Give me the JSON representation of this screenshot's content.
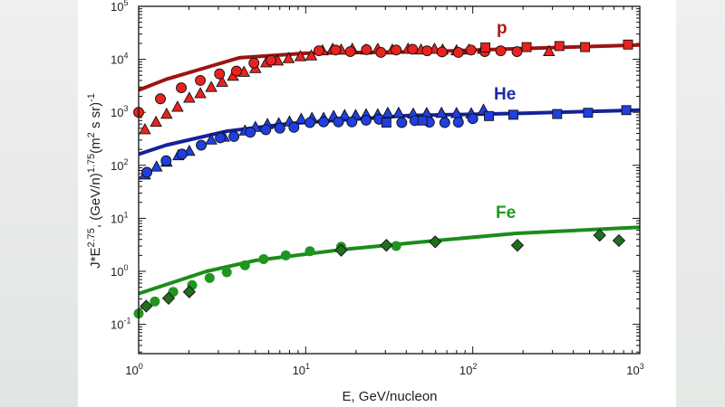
{
  "chart_data": {
    "type": "scatter",
    "title": "",
    "xlabel": "E, GeV/nucleon",
    "ylabel": {
      "base": "J*E",
      "exp1": "2.75",
      "mid": ", (GeV/n)",
      "exp2": "1.75",
      "unit": "(m",
      "exp3": "2",
      "unit2": " s sr)",
      "exp4": "-1"
    },
    "x_scale": "log",
    "y_scale": "log",
    "xlim": [
      1,
      1000
    ],
    "ylim": [
      0.028,
      100000
    ],
    "x_ticks": [
      {
        "base": "10",
        "exp": "0"
      },
      {
        "base": "10",
        "exp": "1"
      },
      {
        "base": "10",
        "exp": "2"
      },
      {
        "base": "10",
        "exp": "3"
      }
    ],
    "y_ticks": [
      {
        "base": "10",
        "exp": "-1"
      },
      {
        "base": "10",
        "exp": "0"
      },
      {
        "base": "10",
        "exp": "1"
      },
      {
        "base": "10",
        "exp": "2"
      },
      {
        "base": "10",
        "exp": "3"
      },
      {
        "base": "10",
        "exp": "4"
      },
      {
        "base": "10",
        "exp": "5"
      }
    ],
    "grid": false,
    "series": [
      {
        "name": "p",
        "label_color": "#b01818",
        "line_color": "#9c1414",
        "marker_color": "#e8231f",
        "model_line": [
          [
            1,
            2630
          ],
          [
            1.46,
            4200
          ],
          [
            2.5,
            6900
          ],
          [
            4.0,
            10700
          ],
          [
            10,
            13000
          ],
          [
            55,
            14000
          ],
          [
            200,
            16000
          ],
          [
            1000,
            18600
          ]
        ],
        "circles": [
          [
            1,
            1000
          ],
          [
            1.35,
            1800
          ],
          [
            1.8,
            2900
          ],
          [
            2.34,
            4000
          ],
          [
            3.05,
            5300
          ],
          [
            3.85,
            6000
          ],
          [
            4.9,
            8500
          ],
          [
            6.2,
            9600
          ],
          [
            12,
            14500
          ],
          [
            15.1,
            15000
          ],
          [
            18.5,
            14000
          ],
          [
            23.1,
            15200
          ],
          [
            28.2,
            13500
          ],
          [
            34.8,
            15000
          ],
          [
            43.6,
            15500
          ],
          [
            53.3,
            14500
          ],
          [
            65.5,
            13800
          ],
          [
            82,
            13500
          ],
          [
            97.5,
            15000
          ],
          [
            118,
            14000
          ],
          [
            147,
            14500
          ],
          [
            184,
            14000
          ]
        ],
        "triangles": [
          [
            1.09,
            470
          ],
          [
            1.27,
            650
          ],
          [
            1.47,
            920
          ],
          [
            1.71,
            1250
          ],
          [
            2.01,
            1850
          ],
          [
            2.34,
            2250
          ],
          [
            2.72,
            2950
          ],
          [
            3.16,
            3700
          ],
          [
            3.67,
            4800
          ],
          [
            4.27,
            5700
          ],
          [
            5.0,
            6700
          ],
          [
            5.8,
            8600
          ],
          [
            6.8,
            9300
          ],
          [
            7.9,
            10300
          ],
          [
            9.3,
            11200
          ],
          [
            10.8,
            11600
          ],
          [
            12.6,
            14500
          ],
          [
            14.5,
            15500
          ],
          [
            16.3,
            15000
          ],
          [
            19,
            15500
          ],
          [
            23,
            15000
          ],
          [
            27,
            15500
          ],
          [
            33,
            15000
          ],
          [
            41,
            15500
          ],
          [
            49,
            15000
          ],
          [
            59,
            15500
          ],
          [
            66,
            15000
          ],
          [
            80,
            14500
          ],
          [
            95,
            15000
          ],
          [
            115,
            15500
          ],
          [
            286,
            14000
          ]
        ],
        "squares": [
          [
            119,
            16700
          ],
          [
            210,
            17000
          ],
          [
            330,
            17800
          ],
          [
            470,
            17000
          ],
          [
            850,
            19000
          ]
        ]
      },
      {
        "name": "He",
        "label_color": "#1a2aa8",
        "line_color": "#14229a",
        "marker_color": "#1f3fe0",
        "model_line": [
          [
            1,
            162
          ],
          [
            1.46,
            240
          ],
          [
            3.37,
            440
          ],
          [
            7.8,
            610
          ],
          [
            41,
            870
          ],
          [
            200,
            960
          ],
          [
            1000,
            1100
          ]
        ],
        "circles": [
          [
            1.12,
            74
          ],
          [
            1.46,
            122
          ],
          [
            1.82,
            163
          ],
          [
            2.37,
            240
          ],
          [
            3.08,
            330
          ],
          [
            3.72,
            350
          ],
          [
            4.66,
            420
          ],
          [
            5.77,
            470
          ],
          [
            7.0,
            500
          ],
          [
            8.5,
            520
          ],
          [
            10.6,
            640
          ],
          [
            12.8,
            660
          ],
          [
            15.7,
            660
          ],
          [
            18.9,
            660
          ],
          [
            23,
            710
          ],
          [
            27.5,
            740
          ],
          [
            37.6,
            640
          ],
          [
            45,
            700
          ],
          [
            55,
            650
          ],
          [
            68,
            640
          ],
          [
            82,
            650
          ],
          [
            100,
            760
          ]
        ],
        "triangles": [
          [
            1.09,
            66
          ],
          [
            1.28,
            93
          ],
          [
            1.47,
            115
          ],
          [
            1.73,
            152
          ],
          [
            2.01,
            184
          ],
          [
            2.72,
            300
          ],
          [
            3.24,
            340
          ],
          [
            4.33,
            445
          ],
          [
            5.0,
            520
          ],
          [
            5.9,
            590
          ],
          [
            6.9,
            610
          ],
          [
            8.0,
            660
          ],
          [
            9.4,
            740
          ],
          [
            10.9,
            770
          ],
          [
            12.8,
            770
          ],
          [
            14.7,
            840
          ],
          [
            17.1,
            870
          ],
          [
            19.9,
            870
          ],
          [
            23,
            900
          ],
          [
            27,
            900
          ],
          [
            31,
            960
          ],
          [
            36,
            960
          ],
          [
            44,
            930
          ],
          [
            53,
            950
          ],
          [
            65,
            960
          ],
          [
            80,
            950
          ],
          [
            98,
            940
          ],
          [
            116,
            1100
          ]
        ],
        "squares": [
          [
            30.4,
            640
          ],
          [
            50,
            700
          ],
          [
            125,
            850
          ],
          [
            175,
            900
          ],
          [
            320,
            930
          ],
          [
            490,
            980
          ],
          [
            830,
            1100
          ]
        ]
      },
      {
        "name": "Fe",
        "label_color": "#1f9a1f",
        "line_color": "#1c8c1c",
        "marker_color": "#1f961f",
        "diamond_color": "#216e21",
        "model_line": [
          [
            1,
            0.38
          ],
          [
            2.55,
            1.0
          ],
          [
            5,
            1.6
          ],
          [
            17,
            2.6
          ],
          [
            60,
            3.8
          ],
          [
            183,
            5.2
          ],
          [
            1000,
            6.8
          ]
        ],
        "circles": [
          [
            1,
            0.16
          ],
          [
            1.25,
            0.27
          ],
          [
            1.61,
            0.41
          ],
          [
            2.09,
            0.55
          ],
          [
            2.66,
            0.75
          ],
          [
            3.37,
            0.96
          ],
          [
            4.33,
            1.3
          ],
          [
            5.6,
            1.7
          ],
          [
            7.6,
            2.0
          ],
          [
            10.6,
            2.4
          ],
          [
            16.3,
            2.9
          ],
          [
            34.8,
            3.0
          ]
        ],
        "diamonds": [
          [
            1.11,
            0.22
          ],
          [
            1.51,
            0.31
          ],
          [
            2.01,
            0.41
          ],
          [
            16.3,
            2.5
          ],
          [
            30.4,
            3.1
          ],
          [
            59.6,
            3.6
          ],
          [
            185,
            3.1
          ],
          [
            575,
            4.8
          ],
          [
            750,
            3.8
          ]
        ]
      }
    ]
  }
}
